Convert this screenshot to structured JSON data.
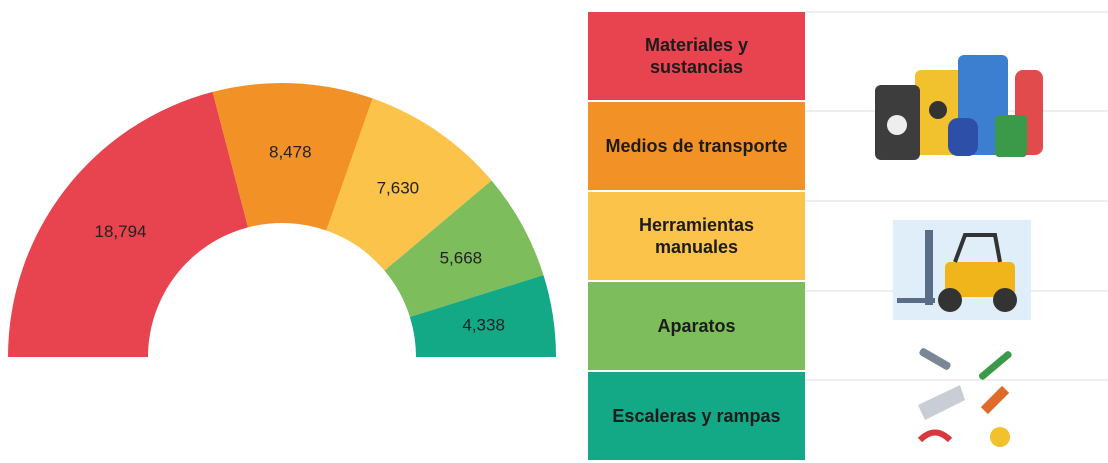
{
  "chart_data": {
    "type": "half-donut",
    "categories": [
      "Materiales y sustancias",
      "Medios de transporte",
      "Herramientas manuales",
      "Aparatos",
      "Escaleras y rampas"
    ],
    "values": [
      18794,
      8478,
      7630,
      5668,
      4338
    ],
    "value_labels": [
      "18,794",
      "8,478",
      "7,630",
      "5,668",
      "4,338"
    ],
    "colors": [
      "#e8444f",
      "#f29226",
      "#fbc34a",
      "#7dbd5c",
      "#13a886"
    ]
  }
}
